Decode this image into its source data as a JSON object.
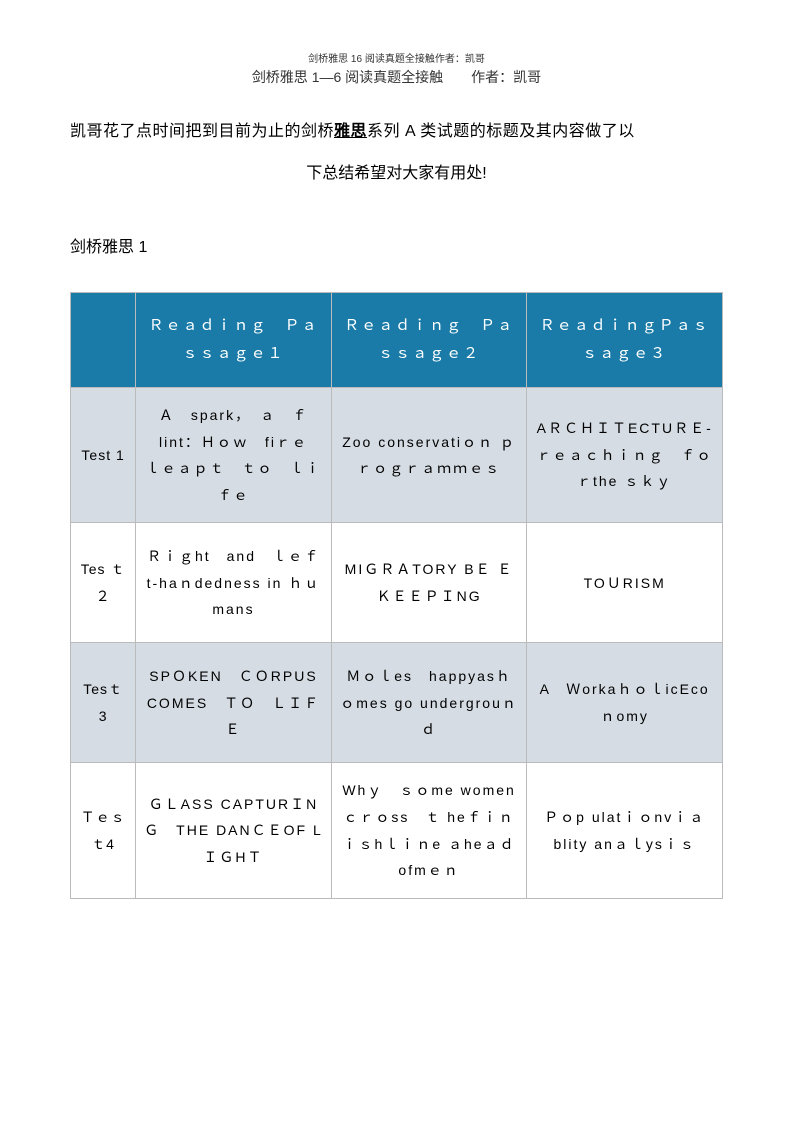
{
  "header": {
    "small_text": "剑桥雅思 16 阅读真题全接触作者：凯哥",
    "main_text": "剑桥雅思 1—6 阅读真题全接触　　作者：凯哥"
  },
  "intro": {
    "line1_pre": "凯哥花了点时间把到目前为止的剑桥",
    "line1_bold": "雅思",
    "line1_post": "系列 A 类试题的标题及其内容做了以",
    "line2": "下总结希望对大家有用处!"
  },
  "section_title": "剑桥雅思 1",
  "table": {
    "headers": {
      "col0": "",
      "col1": "Ｒｅａｄｉｎｇ　Ｐａｓｓａｇｅ１",
      "col2": "Ｒｅａｄｉｎｇ　Ｐａｓｓａｇｅ２",
      "col3": "ＲｅａｄｉｎｇＰａｓｓａｇｅ３"
    },
    "rows": [
      {
        "test": "Test 1",
        "p1": "Ａ　spark，　ａ　ｆlint：Ｈｏｗ　fiｒｅ　ｌｅａｐｔ　ｔｏ　ｌｉｆｅ",
        "p2": "Zoo conservatiｏｎ ｐｒｏｇｒａｍｍｅｓ",
        "p3": "AＲＣＨＩＴECTUＲＥ-ｒｅａｃｈｉｎｇ　ｆｏｒthe ｓｋｙ"
      },
      {
        "test": "Tes ｔ２",
        "p1": "Ｒｉｇht　and　ｌｅｆt-haｎdedness in ｈｕmans",
        "p2": "MIＧＲＡTORY BＥ ＥＫＥＥＰＩNG",
        "p3": "TOＵRISM"
      },
      {
        "test": "Tesｔ　3",
        "p1": "SPＯKEN　ＣＯRPUS COMES　ＴＯ　ＬＩＦＥ",
        "p2": "Ｍｏｌes　happyasｈｏmes go undergrouｎｄ",
        "p3": "A　ＷorkaｈｏｌicEcoｎomy"
      },
      {
        "test": "Ｔｅｓｔ4",
        "p1": "ＧＬASS CAPTURＩNＧ　THE DANＣＥOF LＩＧHＴ",
        "p2": "Whｙ　ｓｏme womenｃｒｏss　ｔ heｆｉｎｉｓhｌｉｎe ａheａｄofmｅｎ",
        "p3": "Ｐｏp ulatｉｏnvｉａblity anａｌysｉｓ"
      }
    ],
    "colors": {
      "header_bg": "#1a7ba8",
      "header_text": "#ffffff",
      "row_even_bg": "#d5dce3",
      "row_odd_bg": "#ffffff",
      "border": "#bbbbbb"
    }
  }
}
